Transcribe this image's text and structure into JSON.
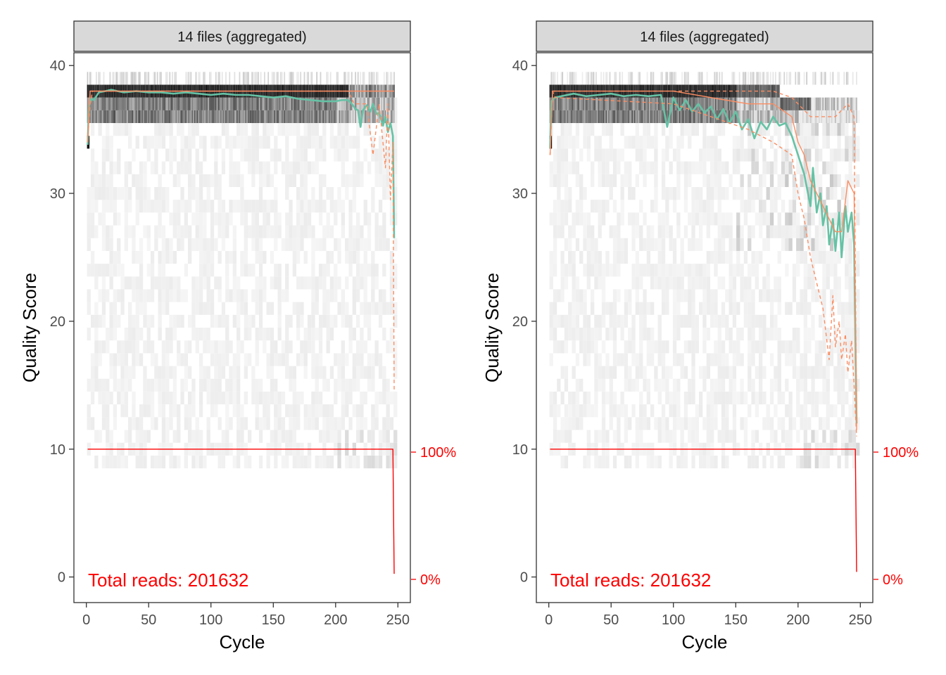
{
  "colors": {
    "mean_line": "#66c2a5",
    "quartile_line": "#fc8d62",
    "reads_line": "#ff0000",
    "strip_fill": "#d9d9d9",
    "heat_dark": "#1a1a1a",
    "heat_light": "#f2f2f2"
  },
  "chart_data": [
    {
      "type": "heatmap",
      "title": "14 files (aggregated)",
      "xlabel": "Cycle",
      "ylabel": "Quality Score",
      "xlim": [
        -10,
        260
      ],
      "ylim": [
        -2,
        41
      ],
      "x_ticks": [
        "0",
        "50",
        "100",
        "150",
        "200",
        "250"
      ],
      "y_ticks": [
        "0",
        "10",
        "20",
        "30",
        "40"
      ],
      "secondary_axis_labels": [
        "100%",
        "0%"
      ],
      "total_reads_label": "Total reads: 201632",
      "max_cycle": 247,
      "series": [
        {
          "name": "mean",
          "x": [
            1,
            2,
            4,
            6,
            8,
            10,
            15,
            20,
            25,
            30,
            40,
            50,
            60,
            70,
            80,
            90,
            100,
            110,
            120,
            130,
            140,
            150,
            160,
            170,
            180,
            190,
            200,
            205,
            210,
            213,
            216,
            218,
            220,
            222,
            225,
            228,
            230,
            233,
            235,
            238,
            240,
            242,
            244,
            246,
            247
          ],
          "values": [
            33.8,
            36.8,
            37.4,
            37.3,
            37.6,
            37.9,
            38.0,
            38.1,
            38.0,
            37.9,
            38.0,
            37.9,
            37.9,
            37.8,
            37.9,
            37.8,
            37.7,
            37.8,
            37.7,
            37.7,
            37.6,
            37.5,
            37.6,
            37.4,
            37.3,
            37.2,
            37.2,
            37.3,
            37.3,
            37.0,
            36.6,
            36.5,
            35.2,
            36.5,
            36.9,
            36.4,
            37.0,
            36.2,
            36.3,
            35.3,
            36.0,
            34.8,
            35.5,
            34.5,
            26.5
          ]
        },
        {
          "name": "median",
          "x": [
            1,
            3,
            5,
            247
          ],
          "values": [
            34.0,
            38.0,
            38.0,
            38.0
          ]
        },
        {
          "name": "q25",
          "x": [
            1,
            3,
            5,
            210,
            215,
            220,
            225,
            230,
            235,
            240,
            242,
            244,
            246,
            247
          ],
          "values": [
            34.0,
            37.0,
            38.0,
            38.0,
            37.0,
            37.0,
            37.0,
            33.0,
            37.0,
            32.0,
            37.0,
            29.5,
            34.0,
            14.5
          ]
        },
        {
          "name": "q75",
          "x": [
            1,
            3,
            5,
            246,
            247
          ],
          "values": [
            34.0,
            38.0,
            38.0,
            38.0,
            38.0
          ]
        },
        {
          "name": "reads_pct",
          "x": [
            1,
            246,
            247
          ],
          "values": [
            100,
            100,
            2.5
          ]
        }
      ]
    },
    {
      "type": "heatmap",
      "title": "14 files (aggregated)",
      "xlabel": "Cycle",
      "ylabel": "Quality Score",
      "xlim": [
        -10,
        260
      ],
      "ylim": [
        -2,
        41
      ],
      "x_ticks": [
        "0",
        "50",
        "100",
        "150",
        "200",
        "250"
      ],
      "y_ticks": [
        "0",
        "10",
        "20",
        "30",
        "40"
      ],
      "secondary_axis_labels": [
        "100%",
        "0%"
      ],
      "total_reads_label": "Total reads: 201632",
      "max_cycle": 247,
      "series": [
        {
          "name": "mean",
          "x": [
            1,
            2,
            5,
            10,
            20,
            30,
            40,
            50,
            60,
            70,
            80,
            90,
            95,
            100,
            105,
            110,
            115,
            120,
            125,
            130,
            135,
            140,
            145,
            150,
            155,
            160,
            165,
            170,
            175,
            180,
            185,
            190,
            195,
            200,
            205,
            210,
            212,
            215,
            218,
            220,
            223,
            225,
            228,
            230,
            233,
            235,
            238,
            240,
            243,
            245,
            247
          ],
          "values": [
            33.5,
            37.2,
            37.5,
            37.6,
            37.8,
            37.6,
            37.7,
            37.8,
            37.6,
            37.7,
            37.6,
            37.7,
            35.2,
            37.5,
            36.5,
            37.3,
            36.4,
            37.0,
            36.3,
            36.8,
            35.8,
            36.6,
            35.5,
            36.4,
            35.0,
            35.8,
            34.3,
            35.6,
            35.0,
            36.0,
            35.3,
            35.5,
            34.5,
            33.0,
            31.5,
            29.0,
            32.0,
            28.5,
            30.0,
            27.5,
            29.0,
            26.0,
            28.0,
            25.5,
            28.5,
            25.0,
            29.0,
            27.0,
            28.5,
            26.0,
            12.0
          ]
        },
        {
          "name": "median",
          "x": [
            1,
            3,
            5,
            100,
            130,
            160,
            180,
            195,
            200,
            205,
            210,
            215,
            220,
            225,
            230,
            235,
            240,
            245,
            247
          ],
          "values": [
            33.0,
            38.0,
            38.0,
            38.0,
            37.5,
            37.0,
            37.0,
            36.0,
            34.0,
            33.0,
            31.0,
            30.0,
            29.0,
            28.0,
            27.0,
            27.0,
            31.0,
            30.0,
            11.5
          ]
        },
        {
          "name": "q25",
          "x": [
            1,
            3,
            5,
            100,
            130,
            160,
            180,
            195,
            200,
            205,
            210,
            215,
            220,
            225,
            228,
            230,
            233,
            235,
            238,
            240,
            243,
            245,
            247
          ],
          "values": [
            33.0,
            38.0,
            37.5,
            37.0,
            36.0,
            35.0,
            34.0,
            33.0,
            30.0,
            28.0,
            25.0,
            23.0,
            21.0,
            17.0,
            22.0,
            18.0,
            20.0,
            17.0,
            19.0,
            16.0,
            18.5,
            15.0,
            11.0
          ]
        },
        {
          "name": "q75",
          "x": [
            1,
            3,
            5,
            150,
            180,
            195,
            200,
            210,
            220,
            230,
            240,
            245,
            247
          ],
          "values": [
            33.0,
            38.0,
            38.0,
            38.0,
            38.0,
            37.5,
            37.0,
            36.0,
            36.0,
            36.0,
            37.0,
            36.0,
            12.0
          ]
        },
        {
          "name": "reads_pct",
          "x": [
            1,
            246,
            247
          ],
          "values": [
            100,
            100,
            4
          ]
        }
      ]
    }
  ]
}
